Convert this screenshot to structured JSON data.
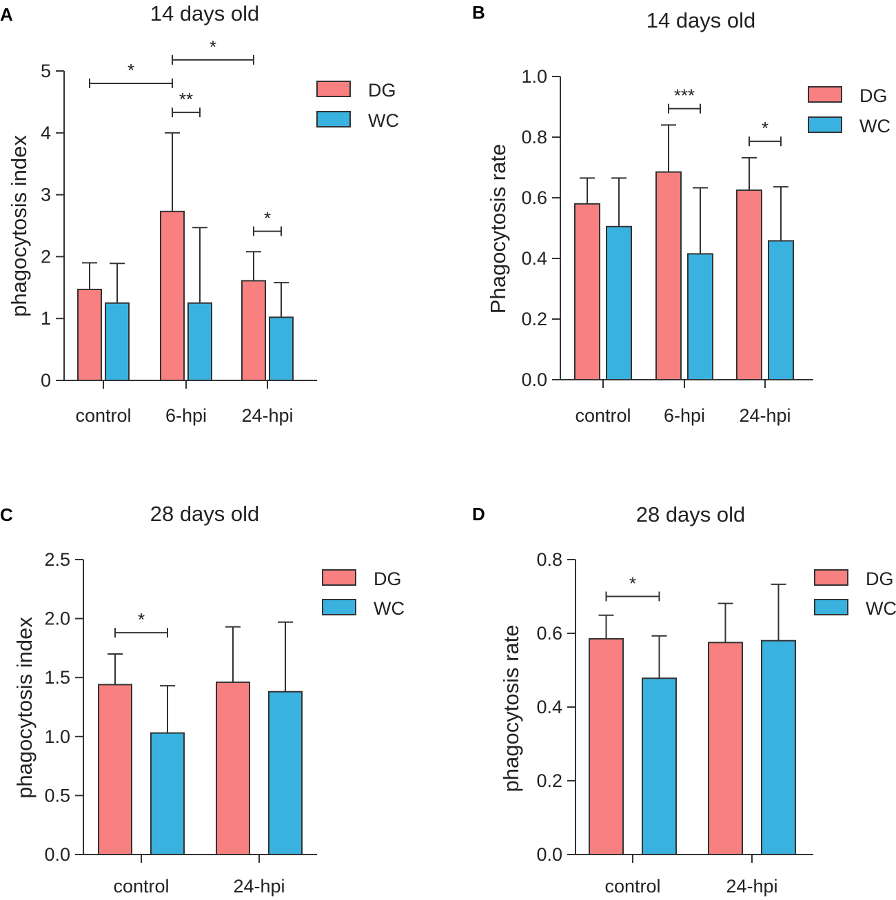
{
  "colors": {
    "dg": "#F88080",
    "wc": "#3AB2E0",
    "axis": "#333333"
  },
  "legend": [
    "DG",
    "WC"
  ],
  "chart_data": [
    {
      "id": "A",
      "panel_label": "A",
      "type": "bar",
      "title": "14 days old",
      "ylabel": "phagocytosis index",
      "categories": [
        "control",
        "6-hpi",
        "24-hpi"
      ],
      "ylim": [
        0,
        5
      ],
      "yticks": [
        "0",
        "1",
        "2",
        "3",
        "4",
        "5"
      ],
      "series": [
        {
          "name": "DG",
          "values": [
            1.47,
            2.73,
            1.61
          ],
          "errors": [
            0.43,
            1.27,
            0.47
          ]
        },
        {
          "name": "WC",
          "values": [
            1.25,
            1.25,
            1.02
          ],
          "errors": [
            0.64,
            1.22,
            0.56
          ]
        }
      ],
      "significance": [
        {
          "label": "*",
          "from": [
            0,
            0
          ],
          "to": [
            1,
            0
          ],
          "y": 4.8
        },
        {
          "label": "*",
          "from": [
            1,
            0
          ],
          "to": [
            2,
            0
          ],
          "y": 5.18
        },
        {
          "label": "**",
          "from": [
            1,
            0
          ],
          "to": [
            1,
            1
          ],
          "y": 4.33
        },
        {
          "label": "*",
          "from": [
            2,
            0
          ],
          "to": [
            2,
            1
          ],
          "y": 2.41
        }
      ]
    },
    {
      "id": "B",
      "panel_label": "B",
      "type": "bar",
      "title": "14 days old",
      "ylabel": "Phagocytosis rate",
      "categories": [
        "control",
        "6-hpi",
        "24-hpi"
      ],
      "ylim": [
        0,
        1
      ],
      "yticks": [
        "0.0",
        "0.2",
        "0.4",
        "0.6",
        "0.8",
        "1.0"
      ],
      "series": [
        {
          "name": "DG",
          "values": [
            0.58,
            0.685,
            0.625
          ],
          "errors": [
            0.085,
            0.155,
            0.107
          ]
        },
        {
          "name": "WC",
          "values": [
            0.505,
            0.415,
            0.458
          ],
          "errors": [
            0.16,
            0.218,
            0.178
          ]
        }
      ],
      "significance": [
        {
          "label": "***",
          "from": [
            1,
            0
          ],
          "to": [
            1,
            1
          ],
          "y": 0.894
        },
        {
          "label": "*",
          "from": [
            2,
            0
          ],
          "to": [
            2,
            1
          ],
          "y": 0.786
        }
      ]
    },
    {
      "id": "C",
      "panel_label": "C",
      "type": "bar",
      "title": "28 days old",
      "ylabel": "phagocytosis index",
      "categories": [
        "control",
        "24-hpi"
      ],
      "ylim": [
        0,
        2.5
      ],
      "yticks": [
        "0.0",
        "0.5",
        "1.0",
        "1.5",
        "2.0",
        "2.5"
      ],
      "series": [
        {
          "name": "DG",
          "values": [
            1.44,
            1.46
          ],
          "errors": [
            0.26,
            0.47
          ]
        },
        {
          "name": "WC",
          "values": [
            1.03,
            1.38
          ],
          "errors": [
            0.4,
            0.59
          ]
        }
      ],
      "significance": [
        {
          "label": "*",
          "from": [
            0,
            0
          ],
          "to": [
            0,
            1
          ],
          "y": 1.88
        }
      ]
    },
    {
      "id": "D",
      "panel_label": "D",
      "type": "bar",
      "title": "28 days old",
      "ylabel": "phagocytosis rate",
      "categories": [
        "control",
        "24-hpi"
      ],
      "ylim": [
        0,
        0.8
      ],
      "yticks": [
        "0.0",
        "0.2",
        "0.4",
        "0.6",
        "0.8"
      ],
      "series": [
        {
          "name": "DG",
          "values": [
            0.585,
            0.575
          ],
          "errors": [
            0.064,
            0.106
          ]
        },
        {
          "name": "WC",
          "values": [
            0.478,
            0.58
          ],
          "errors": [
            0.115,
            0.153
          ]
        }
      ],
      "significance": [
        {
          "label": "*",
          "from": [
            0,
            0
          ],
          "to": [
            0,
            1
          ],
          "y": 0.7
        }
      ]
    }
  ]
}
